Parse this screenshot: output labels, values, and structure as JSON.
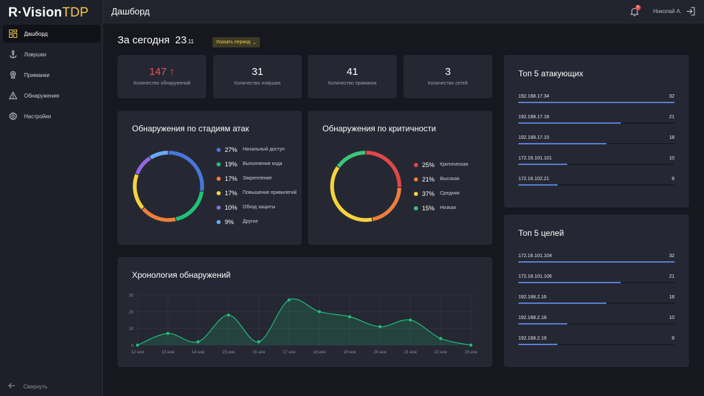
{
  "app": {
    "logo_main": "R·Vision",
    "logo_accent": "TDP"
  },
  "sidebar": {
    "items": [
      {
        "label": "Дашборд",
        "icon": "dashboard-icon",
        "active": true
      },
      {
        "label": "Ловушки",
        "icon": "anchor-icon",
        "active": false
      },
      {
        "label": "Приманки",
        "icon": "bait-icon",
        "active": false
      },
      {
        "label": "Обнаружения",
        "icon": "warning-icon",
        "active": false
      },
      {
        "label": "Настройки",
        "icon": "gear-icon",
        "active": false
      }
    ],
    "collapse_label": "Свернуть"
  },
  "topbar": {
    "title": "Дашборд",
    "notifications_count": "5",
    "user": "Николай А."
  },
  "heading": {
    "label": "За сегодня",
    "day": "23",
    "month": ".11",
    "period_button": "Указать период"
  },
  "stats": [
    {
      "value": "147 ↑",
      "label": "Количество обнаружений",
      "accent": "#e8545a"
    },
    {
      "value": "31",
      "label": "Количество ловушек"
    },
    {
      "value": "41",
      "label": "Количество приманок"
    },
    {
      "value": "3",
      "label": "Количество сетей"
    }
  ],
  "stages": {
    "title": "Обнаружения по стадиям атак",
    "items": [
      {
        "pct": "27%",
        "label": "Начальный доступ",
        "value": 27,
        "color": "#4a76d8"
      },
      {
        "pct": "19%",
        "label": "Выполнение кода",
        "value": 19,
        "color": "#21c17a"
      },
      {
        "pct": "17%",
        "label": "Закрепление",
        "value": 17,
        "color": "#ee7f3a"
      },
      {
        "pct": "17%",
        "label": "Повышение привилегий",
        "value": 17,
        "color": "#f6d33d"
      },
      {
        "pct": "10%",
        "label": "Обход защиты",
        "value": 10,
        "color": "#9468e0"
      },
      {
        "pct": "9%",
        "label": "Другое",
        "value": 9,
        "color": "#6aa9f0"
      }
    ]
  },
  "severity": {
    "title": "Обнаружения по критичности",
    "items": [
      {
        "pct": "25%",
        "label": "Критическая",
        "value": 25,
        "color": "#e04848"
      },
      {
        "pct": "21%",
        "label": "Высокая",
        "value": 21,
        "color": "#ee7f3a"
      },
      {
        "pct": "37%",
        "label": "Средняя",
        "value": 37,
        "color": "#f6d33d"
      },
      {
        "pct": "15%",
        "label": "Низкая",
        "value": 15,
        "color": "#3ec47a"
      }
    ]
  },
  "timeline": {
    "title": "Хронология обнаружений"
  },
  "chart_data": {
    "type": "area",
    "title": "Хронология обнаружений",
    "categories": [
      "12 ноя",
      "13 ноя",
      "14 ноя",
      "15 ноя",
      "16 ноя",
      "17 ноя",
      "18 ноя",
      "19 ноя",
      "20 ноя",
      "21 ноя",
      "22 ноя",
      "23 ноя"
    ],
    "values": [
      0,
      7,
      2,
      18,
      2,
      27,
      20,
      17,
      11,
      15,
      4,
      0
    ],
    "ylim": [
      0,
      30
    ],
    "yticks": [
      "0",
      "10",
      "20",
      "30"
    ],
    "grid": true,
    "color": "#21c17a"
  },
  "top_attackers": {
    "title": "Топ 5 атакующих",
    "max": 32,
    "rows": [
      {
        "ip": "192.168.17.34",
        "value": "32",
        "num": 32
      },
      {
        "ip": "192.168.17.18",
        "value": "21",
        "num": 21
      },
      {
        "ip": "192.168.17.15",
        "value": "18",
        "num": 18
      },
      {
        "ip": "172.16.101.101",
        "value": "10",
        "num": 10
      },
      {
        "ip": "172.16.102.21",
        "value": "8",
        "num": 8
      }
    ]
  },
  "top_targets": {
    "title": "Топ 5 целей",
    "max": 32,
    "rows": [
      {
        "ip": "172.16.101.104",
        "value": "32",
        "num": 32
      },
      {
        "ip": "172.16.101.106",
        "value": "21",
        "num": 21
      },
      {
        "ip": "192.168.2.16",
        "value": "18",
        "num": 18
      },
      {
        "ip": "192.168.2.18",
        "value": "10",
        "num": 10
      },
      {
        "ip": "192.168.2.19",
        "value": "8",
        "num": 8
      }
    ]
  }
}
